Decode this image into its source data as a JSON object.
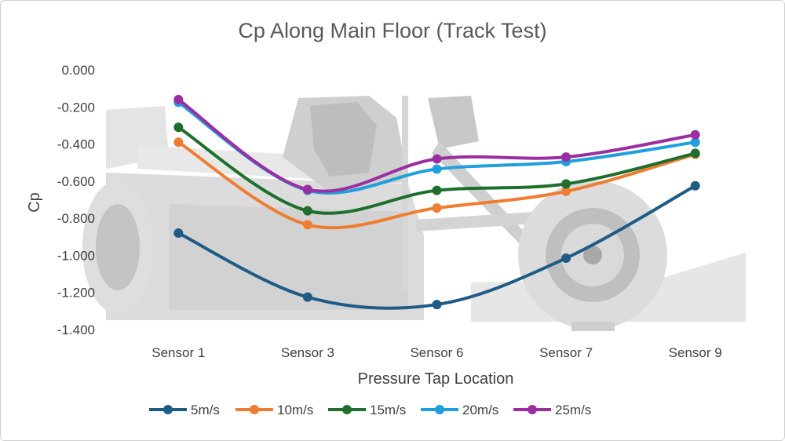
{
  "chart_data": {
    "type": "line",
    "title": "Cp Along Main Floor (Track Test)",
    "xlabel": "Pressure Tap Location",
    "ylabel": "Cp",
    "categories": [
      "Sensor 1",
      "Sensor 3",
      "Sensor 6",
      "Sensor 7",
      "Sensor 9"
    ],
    "ylim": [
      -1.4,
      0.0
    ],
    "yticks": [
      0.0,
      -0.2,
      -0.4,
      -0.6,
      -0.8,
      -1.0,
      -1.2,
      -1.4
    ],
    "ytick_labels": [
      "0.000",
      "-0.200",
      "-0.400",
      "-0.600",
      "-0.800",
      "-1.000",
      "-1.200",
      "-1.400"
    ],
    "smoothed": true,
    "grid": false,
    "legend_position": "bottom",
    "background": "racing car CAD render behind plot area",
    "series": [
      {
        "name": "5m/s",
        "color": "#1f5c85",
        "values": [
          -0.88,
          -1.225,
          -1.265,
          -1.015,
          -0.625
        ]
      },
      {
        "name": "10m/s",
        "color": "#ee7d31",
        "values": [
          -0.39,
          -0.835,
          -0.745,
          -0.655,
          -0.455
        ]
      },
      {
        "name": "15m/s",
        "color": "#1f6f2c",
        "values": [
          -0.31,
          -0.76,
          -0.65,
          -0.615,
          -0.45
        ]
      },
      {
        "name": "20m/s",
        "color": "#1f9fdc",
        "values": [
          -0.175,
          -0.65,
          -0.535,
          -0.495,
          -0.39
        ]
      },
      {
        "name": "25m/s",
        "color": "#9b2fa1",
        "values": [
          -0.16,
          -0.645,
          -0.48,
          -0.47,
          -0.35
        ]
      }
    ]
  }
}
